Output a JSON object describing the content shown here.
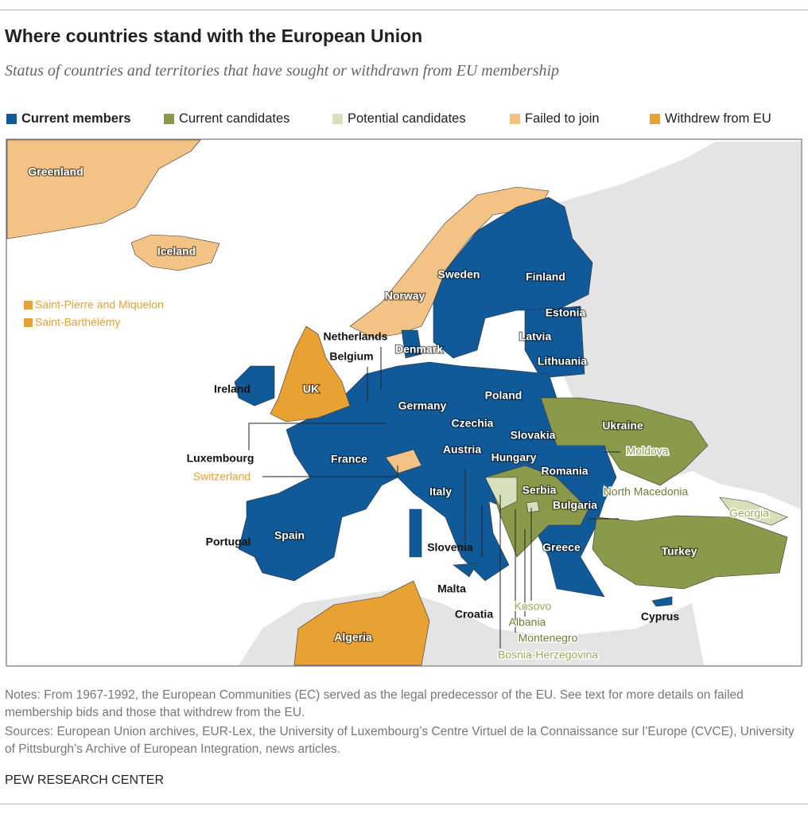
{
  "header": {
    "title": "Where countries stand with the European Union",
    "subtitle": "Status of countries and territories that have sought or withdrawn from EU membership"
  },
  "legend": [
    {
      "label": "Current members",
      "color": "#115a9a",
      "places": [
        "Sweden",
        "Finland",
        "Estonia",
        "Latvia",
        "Lithuania",
        "Denmark",
        "Netherlands",
        "Belgium",
        "Ireland",
        "Germany",
        "Poland",
        "Czechia",
        "Slovakia",
        "Austria",
        "Hungary",
        "Luxembourg",
        "France",
        "Romania",
        "Italy",
        "Bulgaria",
        "Spain",
        "Portugal",
        "Slovenia",
        "Greece",
        "Malta",
        "Croatia",
        "Cyprus"
      ]
    },
    {
      "label": "Current candidates",
      "color": "#8b9a4a",
      "places": [
        "Ukraine",
        "Moldova",
        "Serbia",
        "North Macedonia",
        "Turkey",
        "Albania",
        "Montenegro"
      ]
    },
    {
      "label": "Potential candidates",
      "color": "#d8e0bb",
      "places": [
        "Bosnia-Herzegovina",
        "Kosovo",
        "Georgia"
      ]
    },
    {
      "label": "Failed to join",
      "color": "#f3c385",
      "places": [
        "Greenland",
        "Iceland",
        "Norway",
        "Switzerland"
      ]
    },
    {
      "label": "Withdrew from EU",
      "color": "#e8a133",
      "places": [
        "UK",
        "Saint-Pierre and Miquelon",
        "Saint-Barthélémy",
        "Algeria"
      ]
    }
  ],
  "notes": "Notes: From 1967-1992, the European Communities (EC) served as the legal predecessor of the EU. See text for more details on failed membership bids and those that withdrew from the EU.",
  "sources": "Sources: European Union archives, EUR-Lex, the University of Luxembourg’s Centre Virtuel de la Connaissance sur l’Europe (CVCE), University of Pittsburgh’s Archive of European Integration, news articles.",
  "footer": "PEW RESEARCH CENTER"
}
